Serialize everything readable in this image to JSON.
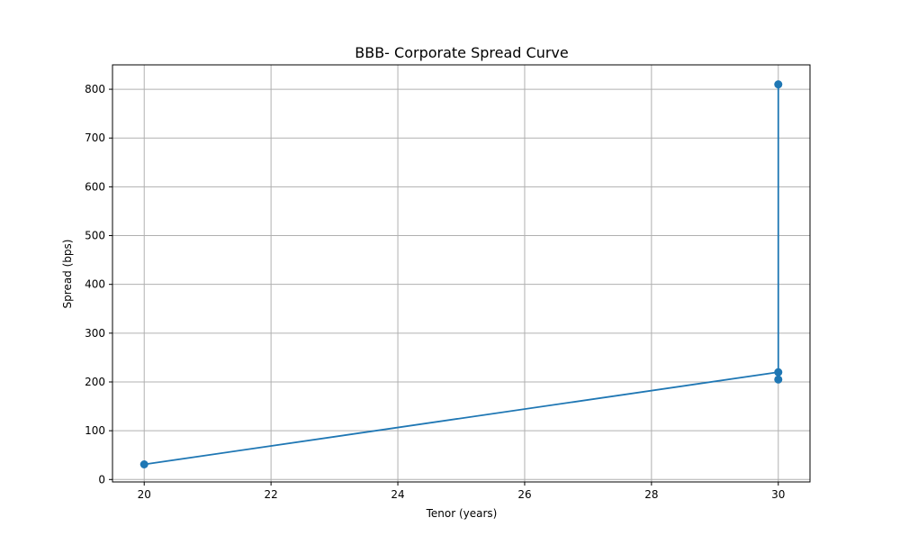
{
  "chart_data": {
    "type": "line",
    "title": "BBB- Corporate Spread Curve",
    "xlabel": "Tenor (years)",
    "ylabel": "Spread (bps)",
    "xlim": [
      19.5,
      30.5
    ],
    "ylim": [
      -5,
      850
    ],
    "x_ticks": [
      20,
      22,
      24,
      26,
      28,
      30
    ],
    "y_ticks": [
      0,
      100,
      200,
      300,
      400,
      500,
      600,
      700,
      800
    ],
    "grid": true,
    "markers": true,
    "series": [
      {
        "color": "#1f77b4",
        "x": [
          20,
          30,
          30,
          30
        ],
        "y": [
          31,
          220,
          810,
          205
        ]
      }
    ]
  }
}
